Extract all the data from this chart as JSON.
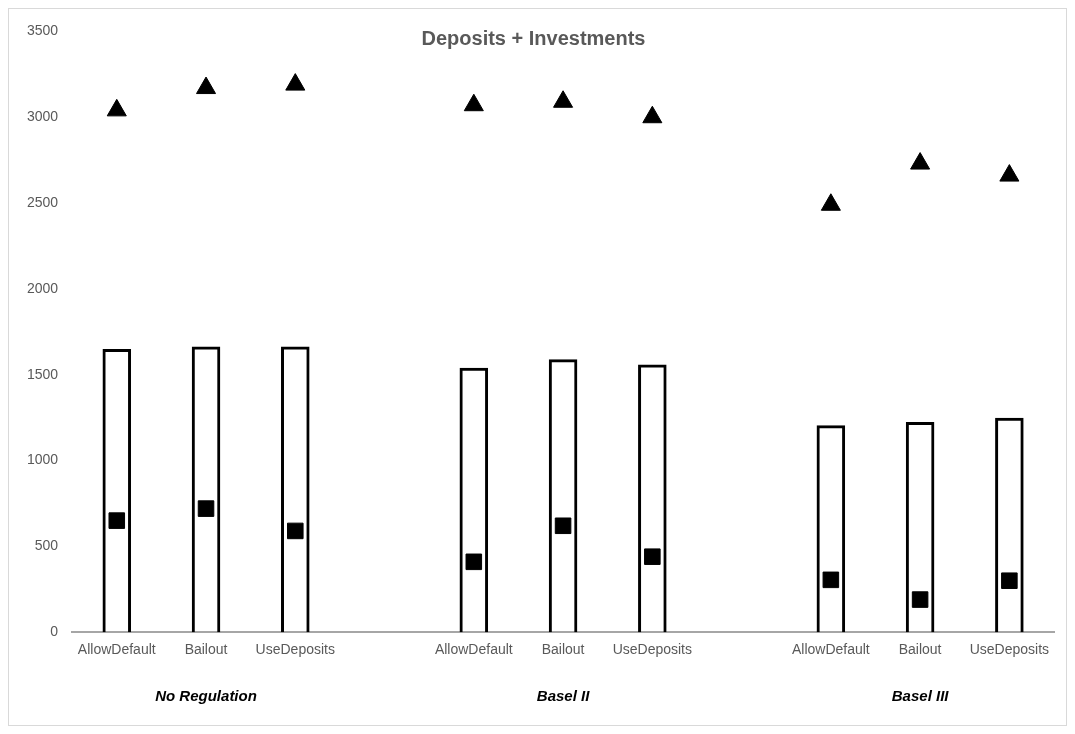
{
  "chart_data": {
    "type": "bar",
    "title": "Deposits + Investments",
    "categories": [
      "AllowDefault",
      "Bailout",
      "UseDeposits",
      null,
      "AllowDefault",
      "Bailout",
      "UseDeposits",
      null,
      "AllowDefault",
      "Bailout",
      "UseDeposits"
    ],
    "series": [
      {
        "type": "bar",
        "color": "#000000",
        "values": [
          1650,
          1665,
          1665,
          null,
          1540,
          1590,
          1560,
          null,
          1205,
          1225,
          1250
        ]
      },
      {
        "type": "scatter",
        "marker": "triangle",
        "color": "#000000",
        "values": [
          3040,
          3170,
          3190,
          null,
          3070,
          3090,
          3000,
          null,
          2490,
          2730,
          2660
        ]
      },
      {
        "type": "scatter",
        "marker": "square",
        "color": "#000000",
        "values": [
          650,
          720,
          590,
          null,
          410,
          620,
          440,
          null,
          305,
          190,
          300
        ]
      }
    ],
    "annotations": [
      "No Regulation",
      "Basel II",
      "Basel III"
    ],
    "ylim": [
      0,
      3500
    ],
    "yticks": [
      0,
      500,
      1000,
      1500,
      2000,
      2500,
      3000,
      3500
    ],
    "grid": false,
    "legend": false
  }
}
